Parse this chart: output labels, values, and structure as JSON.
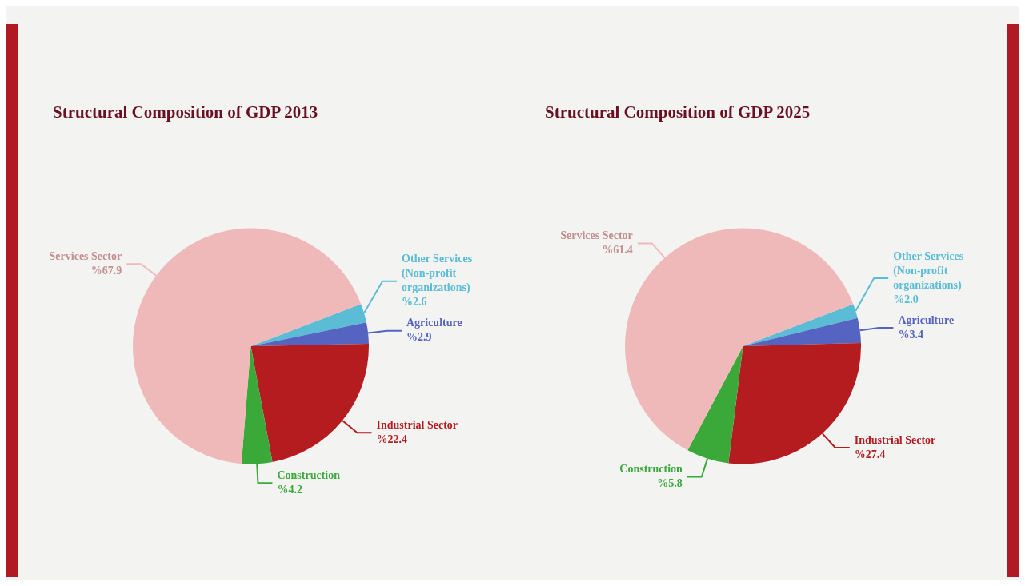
{
  "chart_data": [
    {
      "type": "pie",
      "title": "Structural Composition of GDP 2013",
      "categories": [
        "Other Services (Non-profit organizations)",
        "Agriculture",
        "Industrial Sector",
        "Construction",
        "Services Sector"
      ],
      "values": [
        2.6,
        2.9,
        22.4,
        4.2,
        67.9
      ],
      "value_labels": [
        "%2.6",
        "%2.9",
        "%22.4",
        "%4.2",
        "%67.9"
      ],
      "colors": [
        "#5bbcd6",
        "#5563c1",
        "#b51c20",
        "#3ba83a",
        "#f0b9b9"
      ]
    },
    {
      "type": "pie",
      "title": "Structural Composition of GDP 2025",
      "categories": [
        "Other Services (Non-profit organizations)",
        "Agriculture",
        "Industrial Sector",
        "Construction",
        "Services Sector"
      ],
      "values": [
        2.0,
        3.4,
        27.4,
        5.8,
        61.4
      ],
      "value_labels": [
        "%2.0",
        "%3.4",
        "%27.4",
        "%5.8",
        "%61.4"
      ],
      "colors": [
        "#5bbcd6",
        "#5563c1",
        "#b51c20",
        "#3ba83a",
        "#f0b9b9"
      ]
    }
  ]
}
